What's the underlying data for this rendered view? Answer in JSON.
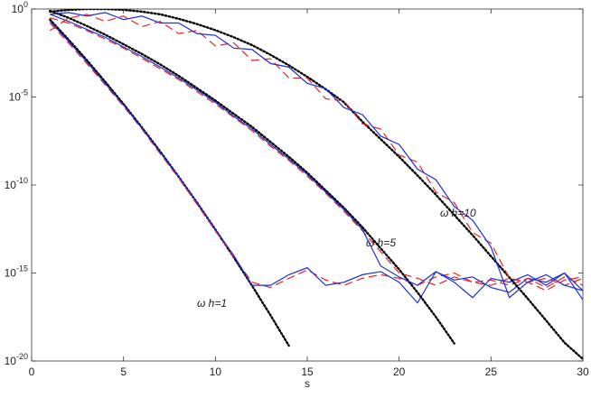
{
  "chart_data": {
    "type": "line",
    "xlabel": "s",
    "ylog": true,
    "xlim": [
      0,
      30
    ],
    "xticks": [
      0,
      5,
      10,
      15,
      20,
      25,
      30
    ],
    "ylim": [
      1e-20,
      1
    ],
    "yticks": [
      {
        "value": 1e-20,
        "label": "10",
        "exponent": "-20"
      },
      {
        "value": 1e-15,
        "label": "10",
        "exponent": "-15"
      },
      {
        "value": 1e-10,
        "label": "10",
        "exponent": "-10"
      },
      {
        "value": 1e-05,
        "label": "10",
        "exponent": "-5"
      },
      {
        "value": 1,
        "label": "10",
        "exponent": "0"
      }
    ],
    "x": [
      1,
      2,
      3,
      4,
      5,
      6,
      7,
      8,
      9,
      10,
      11,
      12,
      13,
      14,
      15,
      16,
      17,
      18,
      19,
      20,
      21,
      22,
      23,
      24,
      25,
      26,
      27,
      28,
      29,
      30
    ],
    "series": [
      {
        "color": "#000000",
        "dash": "dotted",
        "values": [
          0.251,
          0.0186,
          0.00126,
          7.41e-05,
          3.98e-06,
          1.86e-07,
          7.94e-09,
          2.95e-10,
          1e-11,
          2.95e-13,
          7.94e-15,
          1.86e-16,
          3.98e-18,
          7.41e-20,
          null,
          null,
          null,
          null,
          null,
          null,
          null,
          null,
          null,
          null,
          null,
          null,
          null,
          null,
          null,
          null
        ]
      },
      {
        "color": "#e8232a",
        "dash": "dashed",
        "values": [
          0.16,
          0.012,
          0.0008,
          5e-05,
          3e-06,
          1.5e-07,
          6e-09,
          2.5e-10,
          8e-12,
          2.5e-13,
          8e-15,
          3e-16,
          1.5e-16,
          5e-16,
          1.5e-15,
          4e-16,
          2e-16,
          5e-16,
          8e-16,
          5e-16,
          2e-16,
          6e-16,
          1e-15,
          3e-16,
          2e-16,
          5e-16,
          3e-16,
          1e-16,
          4e-16,
          6e-16
        ]
      },
      {
        "color": "#1f2fd6",
        "dash": "solid",
        "values": [
          0.2,
          0.015,
          0.001,
          6e-05,
          3.5e-06,
          1.7e-07,
          7e-09,
          3e-10,
          1e-11,
          3e-13,
          1e-14,
          2e-16,
          2e-16,
          8e-16,
          2e-15,
          2e-16,
          3e-16,
          8e-16,
          1.2e-15,
          3e-16,
          2e-17,
          1.2e-15,
          4e-16,
          6e-16,
          1.5e-16,
          8e-17,
          5e-16,
          3e-16,
          1e-15,
          3e-17
        ]
      },
      {
        "color": "#000000",
        "dash": "dotted",
        "values": [
          0.79,
          0.32,
          0.11,
          0.035,
          0.01,
          0.0028,
          0.00071,
          0.00016,
          3.2e-05,
          6.3e-06,
          1.1e-06,
          2e-07,
          2.8e-08,
          4e-09,
          5e-10,
          5e-11,
          5e-12,
          4e-13,
          2.5e-14,
          1.6e-15,
          7.9e-17,
          3.2e-18,
          1e-19,
          null,
          null,
          null,
          null,
          null,
          null,
          null
        ]
      },
      {
        "color": "#e8232a",
        "dash": "dashed",
        "values": [
          0.32,
          0.16,
          0.06,
          0.02,
          0.006,
          0.0016,
          0.0004,
          0.0001,
          2e-05,
          4e-06,
          7e-07,
          1.2e-07,
          1.6e-08,
          2.5e-09,
          3.2e-10,
          3.5e-11,
          3.2e-12,
          2.5e-13,
          1.6e-14,
          1e-15,
          5e-16,
          2e-16,
          6e-16,
          3e-16,
          4e-16,
          2e-16,
          5e-16,
          1.5e-16,
          6e-16,
          2e-16
        ]
      },
      {
        "color": "#1f2fd6",
        "dash": "solid",
        "values": [
          0.5,
          0.2,
          0.07,
          0.025,
          0.007,
          0.002,
          0.0005,
          0.00012,
          2.5e-05,
          5e-06,
          8e-07,
          1.5e-07,
          2e-08,
          3e-09,
          4e-10,
          4e-11,
          4e-12,
          3e-13,
          2.5e-15,
          6e-16,
          2e-16,
          1.2e-15,
          3e-16,
          4e-17,
          5e-16,
          3e-16,
          8e-16,
          2e-16,
          1e-15,
          1e-16
        ]
      },
      {
        "color": "#000000",
        "dash": "dotted",
        "values": [
          0.71,
          0.89,
          1,
          1,
          0.89,
          0.71,
          0.5,
          0.28,
          0.14,
          0.063,
          0.025,
          0.0089,
          0.0025,
          0.00063,
          0.00014,
          2.8e-05,
          5e-06,
          4e-07,
          4e-08,
          4e-09,
          3.5e-10,
          2.8e-11,
          2e-12,
          1.4e-13,
          8.9e-15,
          5.6e-16,
          3.5e-17,
          2e-18,
          1.1e-19,
          1.3e-20
        ]
      },
      {
        "color": "#e8232a",
        "dash": "dashed",
        "values": [
          0.06,
          0.3,
          0.5,
          0.2,
          0.4,
          0.1,
          0.2,
          0.04,
          0.06,
          0.008,
          0.012,
          0.0012,
          0.0015,
          0.00012,
          0.00012,
          8e-06,
          6e-06,
          3e-07,
          1.5e-07,
          5e-09,
          2e-09,
          4e-11,
          1e-11,
          2e-13,
          5e-14,
          5e-16,
          3e-16,
          5e-16,
          2e-16,
          5e-16
        ]
      },
      {
        "color": "#1f2fd6",
        "dash": "solid",
        "values": [
          0.5,
          0.63,
          0.4,
          0.63,
          0.25,
          0.4,
          0.16,
          0.16,
          0.04,
          0.032,
          0.006,
          0.005,
          0.0008,
          0.0005,
          6e-05,
          3e-05,
          2.5e-06,
          1e-06,
          6e-08,
          2e-08,
          8e-10,
          2e-10,
          6e-12,
          1e-12,
          3e-14,
          4e-17,
          3e-16,
          8e-16,
          2e-16,
          1e-16
        ]
      }
    ],
    "annotations": [
      {
        "text": "ω h=1"
      },
      {
        "text": "ω h=5"
      },
      {
        "text": "ω h=10"
      }
    ]
  }
}
